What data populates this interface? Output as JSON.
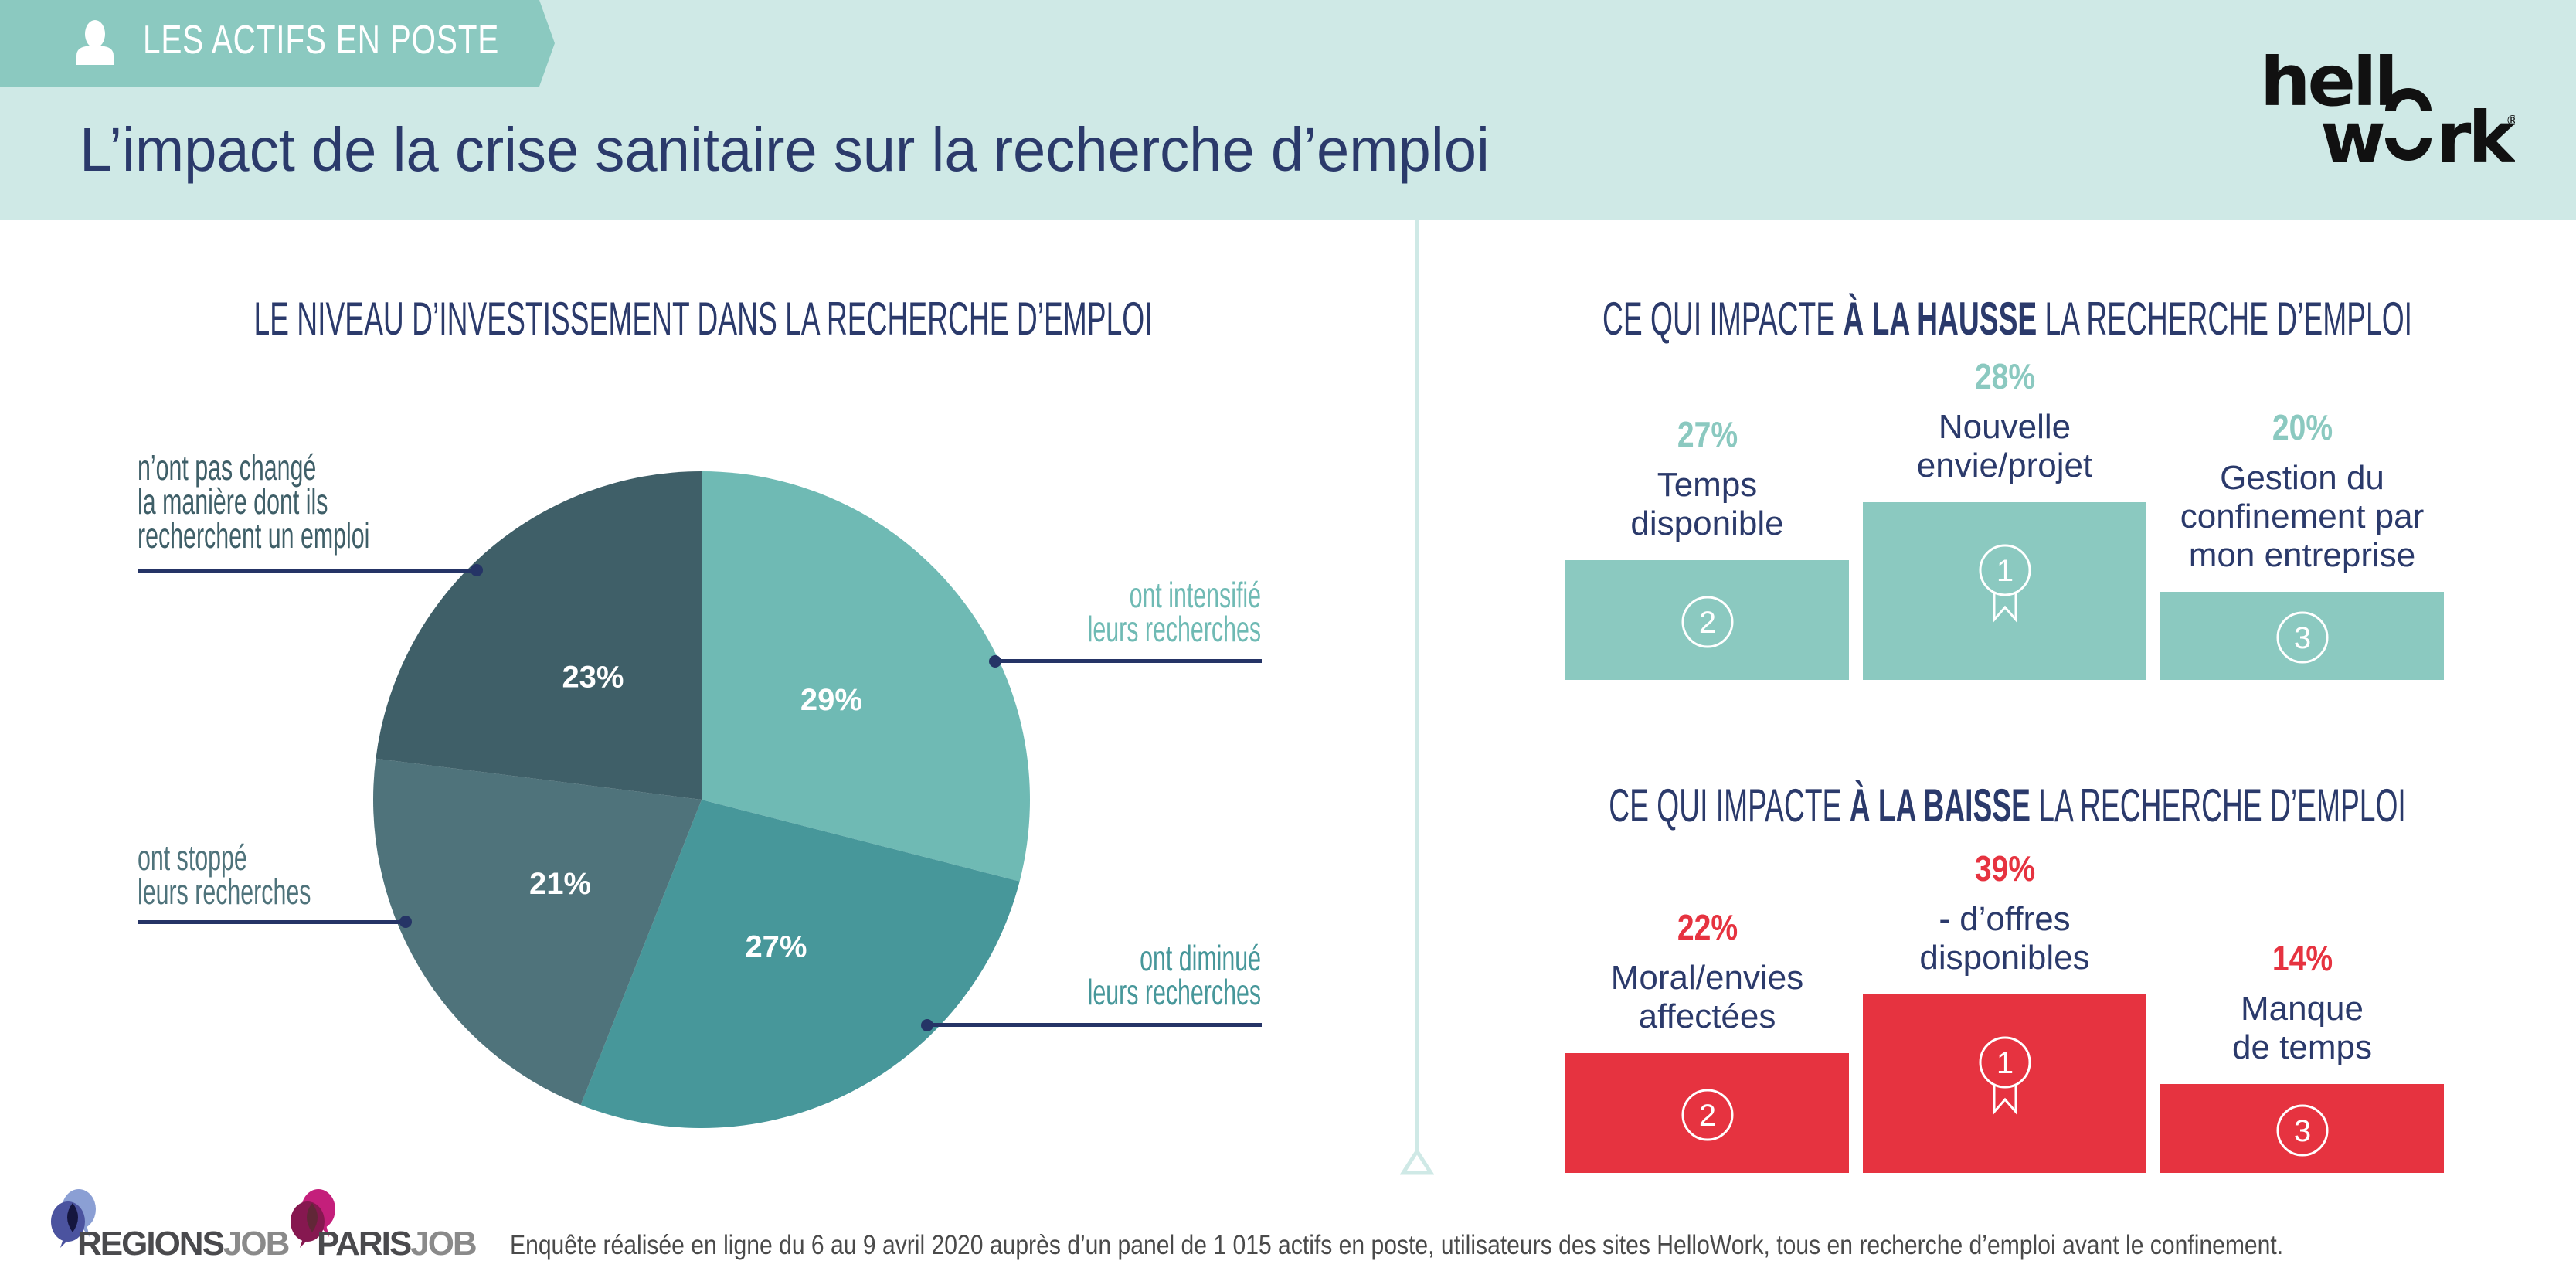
{
  "header": {
    "tab_label": "LES ACTIFS EN POSTE",
    "tab_icon": "person-icon",
    "title": "L’impact de la crise sanitaire sur la recherche d’emploi",
    "logo_line1": "hell",
    "logo_line2": "w",
    "logo_line2_end": "rk",
    "logo_reg": "®"
  },
  "colors": {
    "header_bg": "#cfe9e6",
    "tab_bg": "#8bc9c0",
    "navy": "#2b3a6b",
    "teal_light": "#6fbab4",
    "teal_mid": "#47979a",
    "slate_mid": "#4f737b",
    "slate_dark": "#3f5f68",
    "rise": "#8bc9c0",
    "fall": "#e63340"
  },
  "left": {
    "title": "LE NIVEAU D’INVESTISSEMENT DANS LA RECHERCHE D’EMPLOI"
  },
  "chart_data": {
    "type": "pie",
    "title": "LE NIVEAU D’INVESTISSEMENT DANS LA RECHERCHE D’EMPLOI",
    "start": "top",
    "direction": "clockwise",
    "slices": [
      {
        "label": "ont intensifié leurs recherches",
        "value": 29,
        "display": "29%",
        "color": "#6fbab4"
      },
      {
        "label": "ont diminué leurs recherches",
        "value": 27,
        "display": "27%",
        "color": "#47979a"
      },
      {
        "label": "ont stoppé leurs recherches",
        "value": 21,
        "display": "21%",
        "color": "#4f737b"
      },
      {
        "label": "n’ont pas changé la manière dont ils recherchent un emploi",
        "value": 23,
        "display": "23%",
        "color": "#3f5f68"
      }
    ]
  },
  "pie_labels": {
    "unchanged": [
      "n’ont pas changé",
      "la manière dont ils",
      "recherchent un emploi"
    ],
    "intensified": [
      "ont intensifié",
      "leurs recherches"
    ],
    "stopped": [
      "ont stoppé",
      "leurs recherches"
    ],
    "decreased": [
      "ont diminué",
      "leurs recherches"
    ]
  },
  "rise": {
    "title_pre": "CE QUI IMPACTE ",
    "title_bold": "À LA HAUSSE",
    "title_post": " LA RECHERCHE D’EMPLOI",
    "items": [
      {
        "rank": "2",
        "pct": "27%",
        "value": 27,
        "label": [
          "Temps",
          "disponible"
        ]
      },
      {
        "rank": "1",
        "pct": "28%",
        "value": 28,
        "label": [
          "Nouvelle",
          "envie/projet"
        ]
      },
      {
        "rank": "3",
        "pct": "20%",
        "value": 20,
        "label": [
          "Gestion du",
          "confinement par",
          "mon entreprise"
        ]
      }
    ]
  },
  "fall": {
    "title_pre": "CE QUI IMPACTE ",
    "title_bold": "À LA BAISSE",
    "title_post": " LA RECHERCHE D’EMPLOI",
    "items": [
      {
        "rank": "2",
        "pct": "22%",
        "value": 22,
        "label": [
          "Moral/envies",
          "affectées"
        ]
      },
      {
        "rank": "1",
        "pct": "39%",
        "value": 39,
        "label": [
          "- d’offres",
          "disponibles"
        ]
      },
      {
        "rank": "3",
        "pct": "14%",
        "value": 14,
        "label": [
          "Manque",
          "de temps"
        ]
      }
    ]
  },
  "footer": {
    "regionsjob_a": "REGIONS",
    "regionsjob_b": "JOB",
    "parisjob_a": "PARIS",
    "parisjob_b": "JOB",
    "note": "Enquête réalisée en ligne du 6 au 9 avril 2020 auprès d’un panel de 1 015 actifs en poste, utilisateurs des sites HelloWork, tous en recherche d’emploi avant le confinement."
  }
}
